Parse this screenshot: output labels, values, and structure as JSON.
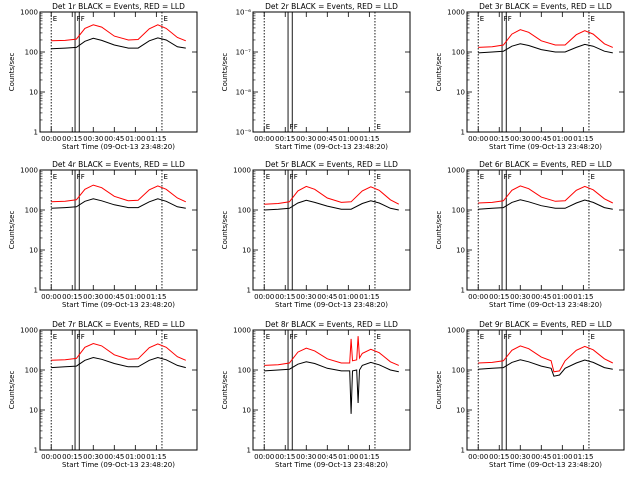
{
  "figure": {
    "time_ticks": [
      "00:00",
      "00:15",
      "00:30",
      "00:45",
      "01:00",
      "01:15"
    ],
    "xlabel": "Start Time (09-Oct-13 23:48:20)",
    "ylabel": "Counts/sec",
    "colors": {
      "events": "#000000",
      "lld": "#ff0000",
      "axes": "#000000"
    }
  },
  "chart_data": [
    {
      "type": "line",
      "title": "Det 1r BLACK = Events, RED = LLD",
      "xlabel": "Start Time (09-Oct-13 23:48:20)",
      "ylabel": "Counts/sec",
      "yscale": "log",
      "ylim": [
        1,
        1000
      ],
      "yticks": [
        "1",
        "10",
        "100",
        "1000"
      ],
      "x_unit": "minutes after 23:48:20",
      "x_ticks": [
        "00:00",
        "00:15",
        "00:30",
        "00:45",
        "01:00",
        "01:15"
      ],
      "markers": [
        {
          "label": "E",
          "x": 0
        },
        {
          "label": "F",
          "x": 17
        },
        {
          "label": "F",
          "x": 20
        },
        {
          "label": "E",
          "x": 79
        }
      ],
      "series": [
        {
          "x": [
            0,
            10,
            18,
            24,
            30,
            36,
            45,
            55,
            62,
            70,
            76,
            82,
            90,
            96
          ],
          "y": [
            120,
            125,
            130,
            185,
            220,
            195,
            150,
            125,
            125,
            190,
            225,
            200,
            135,
            125
          ]
        },
        {
          "x": [
            0,
            10,
            18,
            24,
            30,
            36,
            45,
            55,
            62,
            70,
            76,
            82,
            90,
            96
          ],
          "y": [
            190,
            195,
            210,
            390,
            480,
            420,
            250,
            200,
            205,
            380,
            480,
            390,
            230,
            190
          ]
        }
      ]
    },
    {
      "type": "line",
      "title": "Det 2r BLACK = Events, RED = LLD",
      "xlabel": "Start Time (09-Oct-13 23:48:20)",
      "ylabel": "Counts/sec",
      "yscale": "log",
      "ylim": [
        1e-09,
        1e-06
      ],
      "yticks": [
        "10⁻⁹",
        "10⁻⁸",
        "10⁻⁷",
        "10⁻⁶"
      ],
      "x_unit": "minutes after 23:48:20",
      "x_ticks": [
        "00:00",
        "00:15",
        "00:30",
        "00:45",
        "01:00",
        "01:15"
      ],
      "markers": [
        {
          "label": "E",
          "x": 0
        },
        {
          "label": "F",
          "x": 17
        },
        {
          "label": "F",
          "x": 20
        },
        {
          "label": "E",
          "x": 79
        }
      ],
      "series": [
        {
          "x": [],
          "y": []
        },
        {
          "x": [],
          "y": []
        }
      ]
    },
    {
      "type": "line",
      "title": "Det 3r BLACK = Events, RED = LLD",
      "xlabel": "Start Time (09-Oct-13 23:48:20)",
      "ylabel": "Counts/sec",
      "yscale": "log",
      "ylim": [
        1,
        1000
      ],
      "yticks": [
        "1",
        "10",
        "100",
        "1000"
      ],
      "x_unit": "minutes after 23:48:20",
      "x_ticks": [
        "00:00",
        "00:15",
        "00:30",
        "00:45",
        "01:00",
        "01:15"
      ],
      "markers": [
        {
          "label": "E",
          "x": 0
        },
        {
          "label": "F",
          "x": 17
        },
        {
          "label": "F",
          "x": 20
        },
        {
          "label": "E",
          "x": 79
        }
      ],
      "series": [
        {
          "x": [
            0,
            10,
            18,
            24,
            30,
            36,
            45,
            55,
            62,
            70,
            76,
            82,
            90,
            96
          ],
          "y": [
            95,
            100,
            105,
            140,
            160,
            145,
            115,
            100,
            100,
            130,
            155,
            140,
            105,
            95
          ]
        },
        {
          "x": [
            0,
            10,
            18,
            24,
            30,
            36,
            45,
            55,
            62,
            70,
            76,
            82,
            90,
            96
          ],
          "y": [
            130,
            135,
            150,
            280,
            360,
            310,
            190,
            150,
            150,
            270,
            340,
            280,
            160,
            130
          ]
        }
      ]
    },
    {
      "type": "line",
      "title": "Det 4r BLACK = Events, RED = LLD",
      "xlabel": "Start Time (09-Oct-13 23:48:20)",
      "ylabel": "Counts/sec",
      "yscale": "log",
      "ylim": [
        1,
        1000
      ],
      "yticks": [
        "1",
        "10",
        "100",
        "1000"
      ],
      "x_unit": "minutes after 23:48:20",
      "x_ticks": [
        "00:00",
        "00:15",
        "00:30",
        "00:45",
        "01:00",
        "01:15"
      ],
      "markers": [
        {
          "label": "E",
          "x": 0
        },
        {
          "label": "F",
          "x": 17
        },
        {
          "label": "F",
          "x": 20
        },
        {
          "label": "E",
          "x": 79
        }
      ],
      "series": [
        {
          "x": [
            0,
            10,
            18,
            24,
            30,
            36,
            45,
            55,
            62,
            70,
            76,
            82,
            90,
            96
          ],
          "y": [
            110,
            115,
            120,
            165,
            190,
            170,
            135,
            115,
            115,
            160,
            190,
            165,
            120,
            110
          ]
        },
        {
          "x": [
            0,
            10,
            18,
            24,
            30,
            36,
            45,
            55,
            62,
            70,
            76,
            82,
            90,
            96
          ],
          "y": [
            160,
            165,
            180,
            330,
            420,
            360,
            220,
            170,
            175,
            320,
            400,
            330,
            200,
            160
          ]
        }
      ]
    },
    {
      "type": "line",
      "title": "Det 5r BLACK = Events, RED = LLD",
      "xlabel": "Start Time (09-Oct-13 23:48:20)",
      "ylabel": "Counts/sec",
      "yscale": "log",
      "ylim": [
        1,
        1000
      ],
      "yticks": [
        "1",
        "10",
        "100",
        "1000"
      ],
      "x_unit": "minutes after 23:48:20",
      "x_ticks": [
        "00:00",
        "00:15",
        "00:30",
        "00:45",
        "01:00",
        "01:15"
      ],
      "markers": [
        {
          "label": "E",
          "x": 0
        },
        {
          "label": "F",
          "x": 17
        },
        {
          "label": "F",
          "x": 20
        },
        {
          "label": "E",
          "x": 79
        }
      ],
      "series": [
        {
          "x": [
            0,
            10,
            18,
            24,
            30,
            36,
            45,
            55,
            62,
            70,
            76,
            82,
            90,
            96
          ],
          "y": [
            100,
            105,
            110,
            150,
            175,
            155,
            125,
            105,
            105,
            145,
            170,
            150,
            110,
            100
          ]
        },
        {
          "x": [
            0,
            10,
            18,
            24,
            30,
            36,
            45,
            55,
            62,
            70,
            76,
            82,
            90,
            96
          ],
          "y": [
            140,
            145,
            160,
            300,
            390,
            330,
            200,
            155,
            160,
            300,
            380,
            310,
            180,
            140
          ]
        }
      ]
    },
    {
      "type": "line",
      "title": "Det 6r BLACK = Events, RED = LLD",
      "xlabel": "Start Time (09-Oct-13 23:48:20)",
      "ylabel": "Counts/sec",
      "yscale": "log",
      "ylim": [
        1,
        1000
      ],
      "yticks": [
        "1",
        "10",
        "100",
        "1000"
      ],
      "x_unit": "minutes after 23:48:20",
      "x_ticks": [
        "00:00",
        "00:15",
        "00:30",
        "00:45",
        "01:00",
        "01:15"
      ],
      "markers": [
        {
          "label": "E",
          "x": 0
        },
        {
          "label": "F",
          "x": 17
        },
        {
          "label": "F",
          "x": 20
        },
        {
          "label": "E",
          "x": 79
        }
      ],
      "series": [
        {
          "x": [
            0,
            10,
            18,
            24,
            30,
            36,
            45,
            55,
            62,
            70,
            76,
            82,
            90,
            96
          ],
          "y": [
            105,
            110,
            115,
            155,
            180,
            160,
            128,
            110,
            110,
            150,
            178,
            155,
            115,
            105
          ]
        },
        {
          "x": [
            0,
            10,
            18,
            24,
            30,
            36,
            45,
            55,
            62,
            70,
            76,
            82,
            90,
            96
          ],
          "y": [
            150,
            155,
            170,
            310,
            400,
            340,
            210,
            165,
            170,
            310,
            390,
            320,
            190,
            150
          ]
        }
      ]
    },
    {
      "type": "line",
      "title": "Det 7r BLACK = Events, RED = LLD",
      "xlabel": "Start Time (09-Oct-13 23:48:20)",
      "ylabel": "Counts/sec",
      "yscale": "log",
      "ylim": [
        1,
        1000
      ],
      "yticks": [
        "1",
        "10",
        "100",
        "1000"
      ],
      "x_unit": "minutes after 23:48:20",
      "x_ticks": [
        "00:00",
        "00:15",
        "00:30",
        "00:45",
        "01:00",
        "01:15"
      ],
      "markers": [
        {
          "label": "E",
          "x": 0
        },
        {
          "label": "F",
          "x": 17
        },
        {
          "label": "F",
          "x": 20
        },
        {
          "label": "E",
          "x": 79
        }
      ],
      "series": [
        {
          "x": [
            0,
            10,
            18,
            24,
            30,
            36,
            45,
            55,
            62,
            70,
            76,
            82,
            90,
            96
          ],
          "y": [
            115,
            120,
            125,
            175,
            205,
            185,
            145,
            120,
            120,
            175,
            205,
            180,
            130,
            115
          ]
        },
        {
          "x": [
            0,
            10,
            18,
            24,
            30,
            36,
            45,
            55,
            62,
            70,
            76,
            82,
            90,
            96
          ],
          "y": [
            175,
            180,
            195,
            370,
            460,
            400,
            240,
            185,
            190,
            360,
            450,
            370,
            215,
            175
          ]
        }
      ]
    },
    {
      "type": "line",
      "title": "Det 8r BLACK = Events, RED = LLD",
      "xlabel": "Start Time (09-Oct-13 23:48:20)",
      "ylabel": "Counts/sec",
      "yscale": "log",
      "ylim": [
        1,
        1000
      ],
      "yticks": [
        "1",
        "10",
        "100",
        "1000"
      ],
      "x_unit": "minutes after 23:48:20",
      "x_ticks": [
        "00:00",
        "00:15",
        "00:30",
        "00:45",
        "01:00",
        "01:15"
      ],
      "markers": [
        {
          "label": "E",
          "x": 0
        },
        {
          "label": "F",
          "x": 17
        },
        {
          "label": "F",
          "x": 20
        },
        {
          "label": "E",
          "x": 79
        }
      ],
      "series": [
        {
          "x": [
            0,
            10,
            18,
            24,
            30,
            36,
            45,
            55,
            61,
            62,
            63,
            66,
            67,
            68,
            70,
            76,
            82,
            90,
            96
          ],
          "y": [
            95,
            100,
            105,
            140,
            160,
            145,
            110,
            95,
            95,
            8,
            95,
            100,
            15,
            100,
            130,
            155,
            135,
            100,
            90
          ]
        },
        {
          "x": [
            0,
            10,
            18,
            24,
            30,
            36,
            45,
            55,
            61,
            62,
            63,
            66,
            67,
            68,
            70,
            76,
            82,
            90,
            96
          ],
          "y": [
            130,
            135,
            150,
            280,
            350,
            300,
            190,
            150,
            150,
            600,
            170,
            180,
            700,
            200,
            260,
            330,
            270,
            160,
            130
          ]
        }
      ]
    },
    {
      "type": "line",
      "title": "Det 9r BLACK = Events, RED = LLD",
      "xlabel": "Start Time (09-Oct-13 23:48:20)",
      "ylabel": "Counts/sec",
      "yscale": "log",
      "ylim": [
        1,
        1000
      ],
      "yticks": [
        "1",
        "10",
        "100",
        "1000"
      ],
      "x_unit": "minutes after 23:48:20",
      "x_ticks": [
        "00:00",
        "00:15",
        "00:30",
        "00:45",
        "01:00",
        "01:15"
      ],
      "markers": [
        {
          "label": "E",
          "x": 0
        },
        {
          "label": "F",
          "x": 17
        },
        {
          "label": "F",
          "x": 20
        },
        {
          "label": "E",
          "x": 79
        }
      ],
      "series": [
        {
          "x": [
            0,
            10,
            18,
            24,
            30,
            36,
            45,
            52,
            54,
            58,
            62,
            70,
            76,
            82,
            90,
            96
          ],
          "y": [
            105,
            110,
            115,
            155,
            180,
            160,
            125,
            110,
            70,
            75,
            110,
            150,
            178,
            155,
            115,
            105
          ]
        },
        {
          "x": [
            0,
            10,
            18,
            24,
            30,
            36,
            45,
            52,
            54,
            58,
            62,
            70,
            76,
            82,
            90,
            96
          ],
          "y": [
            150,
            155,
            170,
            310,
            400,
            340,
            210,
            170,
            90,
            95,
            170,
            310,
            390,
            320,
            190,
            150
          ]
        }
      ]
    }
  ]
}
